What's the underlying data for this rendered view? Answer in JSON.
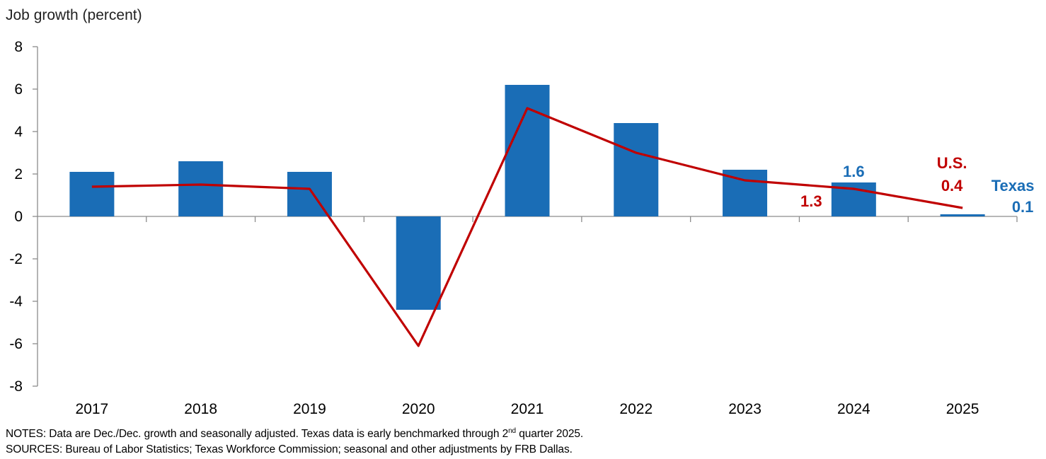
{
  "chart_data": {
    "type": "bar",
    "title": "",
    "ylabel": "Job growth (percent)",
    "xlabel": "",
    "ylim": [
      -8,
      8
    ],
    "yticks": [
      8,
      6,
      4,
      2,
      0,
      -2,
      -4,
      -6,
      -8
    ],
    "categories": [
      "2017",
      "2018",
      "2019",
      "2020",
      "2021",
      "2022",
      "2023",
      "2024",
      "2025"
    ],
    "series": [
      {
        "name": "Texas",
        "type": "bar",
        "color": "#1a6db6",
        "values": [
          2.1,
          2.6,
          2.1,
          -4.4,
          6.2,
          4.4,
          2.2,
          1.6,
          0.1
        ]
      },
      {
        "name": "U.S.",
        "type": "line",
        "color": "#c00000",
        "values": [
          1.4,
          1.5,
          1.3,
          -6.1,
          5.1,
          3.0,
          1.7,
          1.3,
          0.4
        ]
      }
    ],
    "annotations": [
      {
        "text": "1.6",
        "series": "Texas",
        "category": "2024"
      },
      {
        "text": "1.3",
        "series": "U.S.",
        "category": "2024"
      },
      {
        "text": "U.S.",
        "series": "U.S.",
        "category": "2025"
      },
      {
        "text": "0.4",
        "series": "U.S.",
        "category": "2025"
      },
      {
        "text": "Texas",
        "series": "Texas",
        "category": "2025"
      },
      {
        "text": "0.1",
        "series": "Texas",
        "category": "2025"
      }
    ],
    "grid": false,
    "legend": "none"
  },
  "footer": {
    "notes_prefix": "NOTES: Data are Dec./Dec. growth and seasonally adjusted. Texas data is early benchmarked through 2",
    "notes_sup": "nd",
    "notes_suffix": " quarter 2025.",
    "sources": "SOURCES: Bureau of Labor Statistics; Texas Workforce Commission; seasonal and other adjustments by FRB Dallas."
  }
}
